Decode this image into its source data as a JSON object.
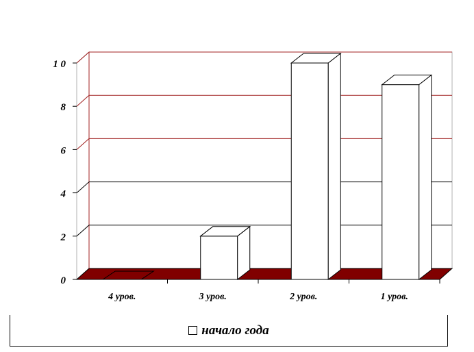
{
  "chart_data": {
    "type": "bar",
    "categories": [
      "4 уров.",
      "3 уров.",
      "2 уров.",
      "1 уров."
    ],
    "series": [
      {
        "name": "начало года",
        "values": [
          0,
          2,
          10,
          9
        ]
      }
    ],
    "ylim": [
      0,
      10
    ],
    "yticks": [
      "0",
      "2",
      "4",
      "6",
      "8",
      "1 0"
    ],
    "grid": true,
    "legend": "bottom",
    "colors": {
      "floor": "#800000",
      "bar_fill": "#ffffff",
      "grid_upper": "#a02020",
      "grid_lower": "#000000"
    }
  }
}
